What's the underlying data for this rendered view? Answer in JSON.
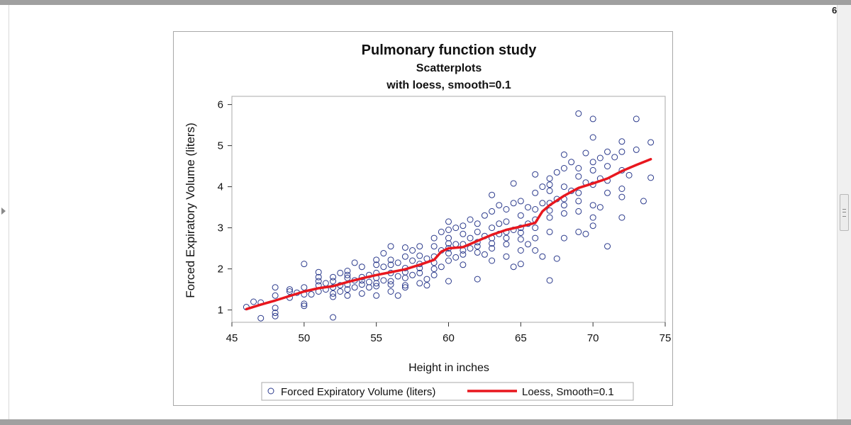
{
  "viewer": {
    "page_number": "6"
  },
  "chart_data": {
    "type": "scatter",
    "title": "Pulmonary function study",
    "subtitle_lines": [
      "Scatterplots",
      "with loess, smooth=0.1"
    ],
    "xlabel": "Height in inches",
    "ylabel": "Forced Expiratory Volume (liters)",
    "xlim": [
      45,
      75
    ],
    "ylim": [
      0.7,
      6.2
    ],
    "xticks": [
      45,
      50,
      55,
      60,
      65,
      70,
      75
    ],
    "yticks": [
      1,
      2,
      3,
      4,
      5,
      6
    ],
    "grid": false,
    "legend_position": "bottom",
    "legend": [
      "Forced Expiratory Volume (liters)",
      "Loess, Smooth=0.1"
    ],
    "colors": {
      "scatter": "#2b3a8c",
      "loess": "#e8171e",
      "axis": "#333333"
    },
    "series": [
      {
        "name": "Forced Expiratory Volume (liters)",
        "kind": "scatter",
        "points": [
          [
            46,
            1.07
          ],
          [
            46.5,
            1.2
          ],
          [
            47,
            0.8
          ],
          [
            47,
            1.18
          ],
          [
            48,
            1.55
          ],
          [
            48,
            1.35
          ],
          [
            48,
            0.93
          ],
          [
            48,
            1.05
          ],
          [
            48,
            0.85
          ],
          [
            49,
            1.45
          ],
          [
            49,
            1.3
          ],
          [
            49,
            1.5
          ],
          [
            49.5,
            1.42
          ],
          [
            50,
            1.55
          ],
          [
            50,
            2.12
          ],
          [
            50,
            1.38
          ],
          [
            50,
            1.15
          ],
          [
            50,
            1.1
          ],
          [
            50.5,
            1.38
          ],
          [
            51,
            1.6
          ],
          [
            51,
            1.8
          ],
          [
            51,
            1.92
          ],
          [
            51,
            1.45
          ],
          [
            51,
            1.7
          ],
          [
            51.5,
            1.5
          ],
          [
            51.5,
            1.65
          ],
          [
            52,
            1.4
          ],
          [
            52,
            1.55
          ],
          [
            52,
            1.7
          ],
          [
            52,
            1.8
          ],
          [
            52,
            0.82
          ],
          [
            52,
            1.32
          ],
          [
            52.5,
            1.9
          ],
          [
            52.5,
            1.6
          ],
          [
            52.5,
            1.45
          ],
          [
            53,
            1.85
          ],
          [
            53,
            1.95
          ],
          [
            53,
            1.35
          ],
          [
            53,
            1.62
          ],
          [
            53,
            1.78
          ],
          [
            53,
            1.5
          ],
          [
            53.5,
            1.72
          ],
          [
            53.5,
            2.15
          ],
          [
            53.5,
            1.55
          ],
          [
            54,
            1.4
          ],
          [
            54,
            1.62
          ],
          [
            54,
            1.8
          ],
          [
            54,
            2.05
          ],
          [
            54,
            1.72
          ],
          [
            54.5,
            1.55
          ],
          [
            54.5,
            1.85
          ],
          [
            54.5,
            1.68
          ],
          [
            55,
            1.35
          ],
          [
            55,
            1.65
          ],
          [
            55,
            1.9
          ],
          [
            55,
            2.1
          ],
          [
            55,
            2.22
          ],
          [
            55,
            1.78
          ],
          [
            55,
            1.58
          ],
          [
            55.5,
            2.05
          ],
          [
            55.5,
            1.72
          ],
          [
            55.5,
            2.38
          ],
          [
            56,
            1.45
          ],
          [
            56,
            1.9
          ],
          [
            56,
            2.1
          ],
          [
            56,
            2.55
          ],
          [
            56,
            1.7
          ],
          [
            56,
            2.22
          ],
          [
            56,
            1.62
          ],
          [
            56.5,
            2.15
          ],
          [
            56.5,
            1.35
          ],
          [
            56.5,
            1.82
          ],
          [
            57,
            1.55
          ],
          [
            57,
            1.78
          ],
          [
            57,
            2.02
          ],
          [
            57,
            2.3
          ],
          [
            57,
            2.52
          ],
          [
            57,
            1.92
          ],
          [
            57,
            1.6
          ],
          [
            57.5,
            2.2
          ],
          [
            57.5,
            1.85
          ],
          [
            57.5,
            2.45
          ],
          [
            58,
            1.65
          ],
          [
            58,
            1.9
          ],
          [
            58,
            2.12
          ],
          [
            58,
            2.32
          ],
          [
            58,
            2.55
          ],
          [
            58,
            2.02
          ],
          [
            58.5,
            1.75
          ],
          [
            58.5,
            2.25
          ],
          [
            58.5,
            1.6
          ],
          [
            59,
            2.0
          ],
          [
            59,
            2.3
          ],
          [
            59,
            2.55
          ],
          [
            59,
            2.75
          ],
          [
            59,
            1.85
          ],
          [
            59,
            2.15
          ],
          [
            59.5,
            2.45
          ],
          [
            59.5,
            2.9
          ],
          [
            59.5,
            2.05
          ],
          [
            60,
            2.2
          ],
          [
            60,
            2.5
          ],
          [
            60,
            2.75
          ],
          [
            60,
            2.95
          ],
          [
            60,
            3.15
          ],
          [
            60,
            1.7
          ],
          [
            60,
            2.38
          ],
          [
            60,
            2.62
          ],
          [
            60.5,
            2.6
          ],
          [
            60.5,
            3.0
          ],
          [
            60.5,
            2.28
          ],
          [
            61,
            2.35
          ],
          [
            61,
            2.6
          ],
          [
            61,
            2.85
          ],
          [
            61,
            3.05
          ],
          [
            61,
            2.1
          ],
          [
            61,
            2.45
          ],
          [
            61.5,
            2.75
          ],
          [
            61.5,
            3.2
          ],
          [
            61.5,
            2.5
          ],
          [
            62,
            2.4
          ],
          [
            62,
            2.65
          ],
          [
            62,
            2.9
          ],
          [
            62,
            3.1
          ],
          [
            62,
            1.75
          ],
          [
            62,
            2.55
          ],
          [
            62.5,
            2.8
          ],
          [
            62.5,
            3.3
          ],
          [
            62.5,
            2.35
          ],
          [
            63,
            2.5
          ],
          [
            63,
            2.75
          ],
          [
            63,
            3.0
          ],
          [
            63,
            3.4
          ],
          [
            63,
            3.8
          ],
          [
            63,
            2.2
          ],
          [
            63,
            2.62
          ],
          [
            63.5,
            3.1
          ],
          [
            63.5,
            2.85
          ],
          [
            63.5,
            3.55
          ],
          [
            64,
            2.3
          ],
          [
            64,
            2.6
          ],
          [
            64,
            2.9
          ],
          [
            64,
            3.15
          ],
          [
            64,
            3.45
          ],
          [
            64,
            2.75
          ],
          [
            64.5,
            2.05
          ],
          [
            64.5,
            3.6
          ],
          [
            64.5,
            4.08
          ],
          [
            64.5,
            2.95
          ],
          [
            65,
            2.45
          ],
          [
            65,
            2.72
          ],
          [
            65,
            3.0
          ],
          [
            65,
            3.3
          ],
          [
            65,
            3.65
          ],
          [
            65,
            2.12
          ],
          [
            65,
            2.88
          ],
          [
            65.5,
            3.5
          ],
          [
            65.5,
            2.6
          ],
          [
            65.5,
            3.1
          ],
          [
            66,
            2.45
          ],
          [
            66,
            3.0
          ],
          [
            66,
            3.45
          ],
          [
            66,
            3.85
          ],
          [
            66,
            4.3
          ],
          [
            66,
            2.75
          ],
          [
            66,
            3.2
          ],
          [
            66.5,
            3.6
          ],
          [
            66.5,
            4.0
          ],
          [
            66.5,
            2.3
          ],
          [
            67,
            2.9
          ],
          [
            67,
            3.25
          ],
          [
            67,
            3.6
          ],
          [
            67,
            3.9
          ],
          [
            67,
            4.2
          ],
          [
            67,
            1.72
          ],
          [
            67,
            3.42
          ],
          [
            67,
            4.05
          ],
          [
            67.5,
            3.7
          ],
          [
            67.5,
            4.35
          ],
          [
            67.5,
            2.25
          ],
          [
            68,
            3.35
          ],
          [
            68,
            3.7
          ],
          [
            68,
            4.0
          ],
          [
            68,
            4.45
          ],
          [
            68,
            4.78
          ],
          [
            68,
            2.75
          ],
          [
            68,
            3.55
          ],
          [
            68.5,
            3.9
          ],
          [
            68.5,
            4.6
          ],
          [
            69,
            2.9
          ],
          [
            69,
            3.4
          ],
          [
            69,
            3.85
          ],
          [
            69,
            4.25
          ],
          [
            69,
            4.45
          ],
          [
            69,
            5.78
          ],
          [
            69,
            3.65
          ],
          [
            69.5,
            4.1
          ],
          [
            69.5,
            4.82
          ],
          [
            69.5,
            2.85
          ],
          [
            70,
            3.05
          ],
          [
            70,
            3.55
          ],
          [
            70,
            4.05
          ],
          [
            70,
            4.4
          ],
          [
            70,
            4.6
          ],
          [
            70,
            5.2
          ],
          [
            70,
            5.65
          ],
          [
            70,
            3.25
          ],
          [
            70.5,
            4.2
          ],
          [
            70.5,
            3.5
          ],
          [
            70.5,
            4.7
          ],
          [
            71,
            2.55
          ],
          [
            71,
            3.85
          ],
          [
            71,
            4.15
          ],
          [
            71,
            4.5
          ],
          [
            71,
            4.85
          ],
          [
            71.5,
            4.72
          ],
          [
            72,
            3.25
          ],
          [
            72,
            3.75
          ],
          [
            72,
            4.4
          ],
          [
            72,
            4.85
          ],
          [
            72,
            5.1
          ],
          [
            72,
            3.95
          ],
          [
            72.5,
            4.28
          ],
          [
            73,
            4.9
          ],
          [
            73,
            5.65
          ],
          [
            73.5,
            3.65
          ],
          [
            74,
            4.22
          ],
          [
            74,
            5.08
          ]
        ]
      },
      {
        "name": "Loess, Smooth=0.1",
        "kind": "line",
        "points": [
          [
            46,
            1.02
          ],
          [
            47,
            1.13
          ],
          [
            48,
            1.23
          ],
          [
            49,
            1.34
          ],
          [
            50,
            1.45
          ],
          [
            51,
            1.53
          ],
          [
            52,
            1.58
          ],
          [
            53,
            1.68
          ],
          [
            54,
            1.77
          ],
          [
            55,
            1.85
          ],
          [
            56,
            1.92
          ],
          [
            57,
            1.99
          ],
          [
            58,
            2.1
          ],
          [
            59,
            2.22
          ],
          [
            59.5,
            2.42
          ],
          [
            60,
            2.5
          ],
          [
            61,
            2.53
          ],
          [
            62,
            2.68
          ],
          [
            63,
            2.83
          ],
          [
            64,
            2.95
          ],
          [
            65,
            3.03
          ],
          [
            66,
            3.12
          ],
          [
            66.5,
            3.4
          ],
          [
            67,
            3.55
          ],
          [
            68,
            3.78
          ],
          [
            69,
            3.97
          ],
          [
            70,
            4.08
          ],
          [
            71,
            4.2
          ],
          [
            72,
            4.38
          ],
          [
            73,
            4.53
          ],
          [
            74,
            4.67
          ]
        ]
      }
    ]
  }
}
